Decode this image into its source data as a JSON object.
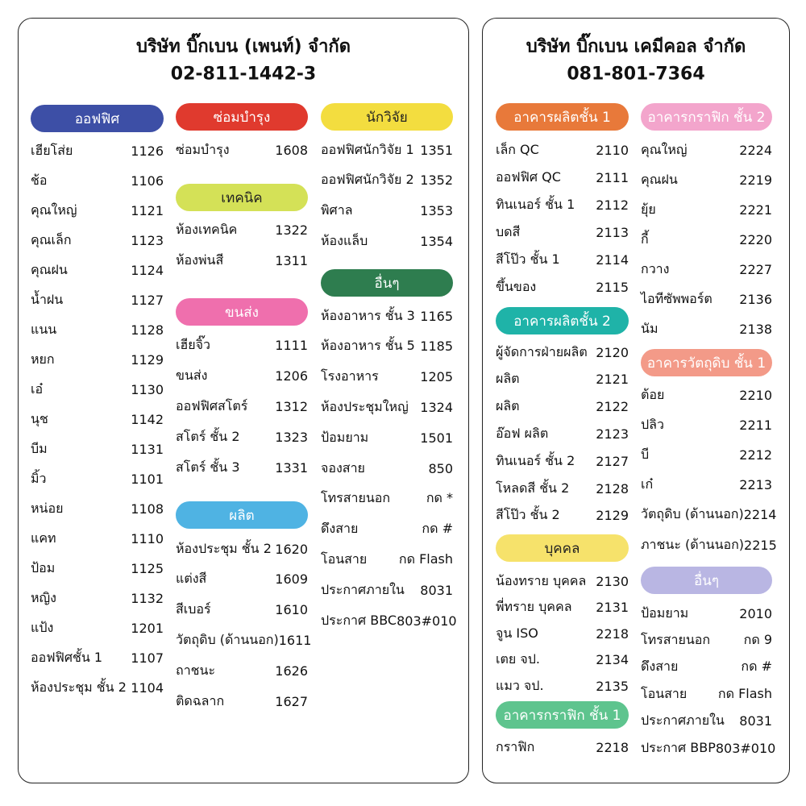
{
  "left": {
    "title": "บริษัท บิ๊กเบน (เพนท์) จำกัด",
    "phone": "02-811-1442-3",
    "columns": [
      {
        "sections": [
          {
            "heading": "ออฟฟิศ",
            "color": "#3d4fa6",
            "text_color": "#ffffff",
            "rows": [
              {
                "name": "เฮียโส่ย",
                "ext": "1126"
              },
              {
                "name": "ช้อ",
                "ext": "1106"
              },
              {
                "name": "คุณใหญ่",
                "ext": "1121"
              },
              {
                "name": "คุณเล็ก",
                "ext": "1123"
              },
              {
                "name": "คุณฝน",
                "ext": "1124"
              },
              {
                "name": "น้ำฝน",
                "ext": "1127"
              },
              {
                "name": "แนน",
                "ext": "1128"
              },
              {
                "name": "หยก",
                "ext": "1129"
              },
              {
                "name": "เอ๋",
                "ext": "1130"
              },
              {
                "name": "นุช",
                "ext": "1142"
              },
              {
                "name": "บีม",
                "ext": "1131"
              },
              {
                "name": "มิ้ว",
                "ext": "1101"
              },
              {
                "name": "หน่อย",
                "ext": "1108"
              },
              {
                "name": "แคท",
                "ext": "1110"
              },
              {
                "name": "ป้อม",
                "ext": "1125"
              },
              {
                "name": "หญิง",
                "ext": "1132"
              },
              {
                "name": "แป้ง",
                "ext": "1201"
              },
              {
                "name": "ออฟฟิศชั้น 1",
                "ext": "1107"
              },
              {
                "name": "ห้องประชุม ชั้น 2",
                "ext": "1104"
              }
            ]
          }
        ]
      },
      {
        "sections": [
          {
            "heading": "ซ่อมบำรุง",
            "color": "#e03a2e",
            "text_color": "#ffffff",
            "rows": [
              {
                "name": "ซ่อมบำรุง",
                "ext": "1608"
              }
            ]
          },
          {
            "heading": "เทคนิค",
            "color": "#d4e157",
            "text_color": "#222222",
            "rows": [
              {
                "name": "ห้องเทคนิค",
                "ext": "1322"
              },
              {
                "name": "ห้องพ่นสี",
                "ext": "1311"
              }
            ]
          },
          {
            "heading": "ขนส่ง",
            "color": "#ef6fad",
            "text_color": "#ffffff",
            "rows": [
              {
                "name": "เฮียจิ๊ว",
                "ext": "1111"
              },
              {
                "name": "ขนส่ง",
                "ext": "1206"
              },
              {
                "name": "ออฟฟิศสโตร์",
                "ext": "1312"
              },
              {
                "name": "สโตร์ ชั้น 2",
                "ext": "1323"
              },
              {
                "name": "สโตร์ ชั้น 3",
                "ext": "1331"
              }
            ]
          },
          {
            "heading": "ผลิต",
            "color": "#4fb3e3",
            "text_color": "#ffffff",
            "rows": [
              {
                "name": "ห้องประชุม ชั้น 2",
                "ext": "1620"
              },
              {
                "name": "แต่งสี",
                "ext": "1609"
              },
              {
                "name": "สีเบอร์",
                "ext": "1610"
              },
              {
                "name": "วัตถุดิบ (ด้านนอก)",
                "ext": "1611"
              },
              {
                "name": "ถาชนะ",
                "ext": "1626"
              },
              {
                "name": "ติดฉลาก",
                "ext": "1627"
              }
            ]
          }
        ]
      },
      {
        "sections": [
          {
            "heading": "นักวิจัย",
            "color": "#f3dd3f",
            "text_color": "#222222",
            "rows": [
              {
                "name": "ออฟฟิศนักวิจัย 1",
                "ext": "1351"
              },
              {
                "name": "ออฟฟิศนักวิจัย 2",
                "ext": "1352"
              },
              {
                "name": "พิศาล",
                "ext": "1353"
              },
              {
                "name": "ห้องแล็บ",
                "ext": "1354"
              }
            ]
          },
          {
            "heading": "อื่นๆ",
            "color": "#2e7d4f",
            "text_color": "#ffffff",
            "rows": [
              {
                "name": "ห้องอาหาร ชั้น 3",
                "ext": "1165"
              },
              {
                "name": "ห้องอาหาร ชั้น 5",
                "ext": "1185"
              },
              {
                "name": "โรงอาหาร",
                "ext": "1205"
              },
              {
                "name": "ห้องประชุมใหญ่",
                "ext": "1324"
              },
              {
                "name": "ป้อมยาม",
                "ext": "1501"
              },
              {
                "name": "จองสาย",
                "ext": "850"
              },
              {
                "name": "โทรสายนอก",
                "ext": "กด *"
              },
              {
                "name": "ดึงสาย",
                "ext": "กด #"
              },
              {
                "name": "โอนสาย",
                "ext": "กด Flash"
              },
              {
                "name": "ประกาศภายใน",
                "ext": "8031"
              },
              {
                "name": "ประกาศ BBC",
                "ext": "803#010"
              }
            ]
          }
        ]
      }
    ]
  },
  "right": {
    "title": "บริษัท บิ๊กเบน เคมีคอล จำกัด",
    "phone": "081-801-7364",
    "columns": [
      {
        "sections": [
          {
            "heading": "อาคารผลิตชั้น 1",
            "color": "#e8793a",
            "text_color": "#ffffff",
            "rows": [
              {
                "name": "เล็ก QC",
                "ext": "2110"
              },
              {
                "name": "ออฟฟิศ QC",
                "ext": "2111"
              },
              {
                "name": "ทินเนอร์ ชั้น 1",
                "ext": "2112"
              },
              {
                "name": "บดสี",
                "ext": "2113"
              },
              {
                "name": "สีโป๊ว ชั้น 1",
                "ext": "2114"
              },
              {
                "name": "ขึ้นของ",
                "ext": "2115"
              }
            ]
          },
          {
            "heading": "อาคารผลิตชั้น 2",
            "color": "#1fb3a8",
            "text_color": "#ffffff",
            "rows": [
              {
                "name": "ผู้จัดการฝ่ายผลิต",
                "ext": "2120"
              },
              {
                "name": "ผลิต",
                "ext": "2121"
              },
              {
                "name": "ผลิต",
                "ext": "2122"
              },
              {
                "name": "อ๊อฟ ผลิต",
                "ext": "2123"
              },
              {
                "name": "ทินเนอร์ ชั้น 2",
                "ext": "2127"
              },
              {
                "name": "โหลดสี ชั้น 2",
                "ext": "2128"
              },
              {
                "name": "สีโป๊ว ชั้น 2",
                "ext": "2129"
              }
            ]
          },
          {
            "heading": "บุคคล",
            "color": "#f6e26b",
            "text_color": "#222222",
            "rows": [
              {
                "name": "น้องทราย บุคคล",
                "ext": "2130"
              },
              {
                "name": "พี่ทราย บุคคล",
                "ext": "2131"
              },
              {
                "name": "จูน ISO",
                "ext": "2218"
              },
              {
                "name": "เตย จป.",
                "ext": "2134"
              },
              {
                "name": "แมว จป.",
                "ext": "2135"
              }
            ]
          },
          {
            "heading": "อาคารกราฟิก ชั้น 1",
            "color": "#5ec48e",
            "text_color": "#ffffff",
            "rows": [
              {
                "name": "กราฟิก",
                "ext": "2218"
              }
            ]
          }
        ]
      },
      {
        "sections": [
          {
            "heading": "อาคารกราฟิก ชั้น 2",
            "color": "#f3a5cc",
            "text_color": "#ffffff",
            "rows": [
              {
                "name": "คุณใหญ่",
                "ext": "2224"
              },
              {
                "name": "คุณฝน",
                "ext": "2219"
              },
              {
                "name": "ยุ้ย",
                "ext": "2221"
              },
              {
                "name": "กี้",
                "ext": "2220"
              },
              {
                "name": "กวาง",
                "ext": "2227"
              },
              {
                "name": "ไอทีซัพพอร์ต",
                "ext": "2136"
              },
              {
                "name": "นัม",
                "ext": "2138"
              }
            ]
          },
          {
            "heading": "อาคารวัตถุดิบ ชั้น 1",
            "color": "#f39a88",
            "text_color": "#ffffff",
            "rows": [
              {
                "name": "ต้อย",
                "ext": "2210"
              },
              {
                "name": "ปลิว",
                "ext": "2211"
              },
              {
                "name": "บี",
                "ext": "2212"
              },
              {
                "name": "เก๋",
                "ext": "2213"
              },
              {
                "name": "วัตถุดิบ (ด้านนอก)",
                "ext": "2214"
              },
              {
                "name": "ภาชนะ (ด้านนอก)",
                "ext": "2215"
              }
            ]
          },
          {
            "heading": "อื่นๆ",
            "color": "#b9b6e3",
            "text_color": "#ffffff",
            "rows": [
              {
                "name": "ป้อมยาม",
                "ext": "2010"
              },
              {
                "name": "โทรสายนอก",
                "ext": "กด 9"
              },
              {
                "name": "ดึงสาย",
                "ext": "กด #"
              },
              {
                "name": "โอนสาย",
                "ext": "กด Flash"
              },
              {
                "name": "ประกาศภายใน",
                "ext": "8031"
              },
              {
                "name": "ประกาศ BBP",
                "ext": "803#010"
              }
            ]
          }
        ]
      }
    ]
  }
}
